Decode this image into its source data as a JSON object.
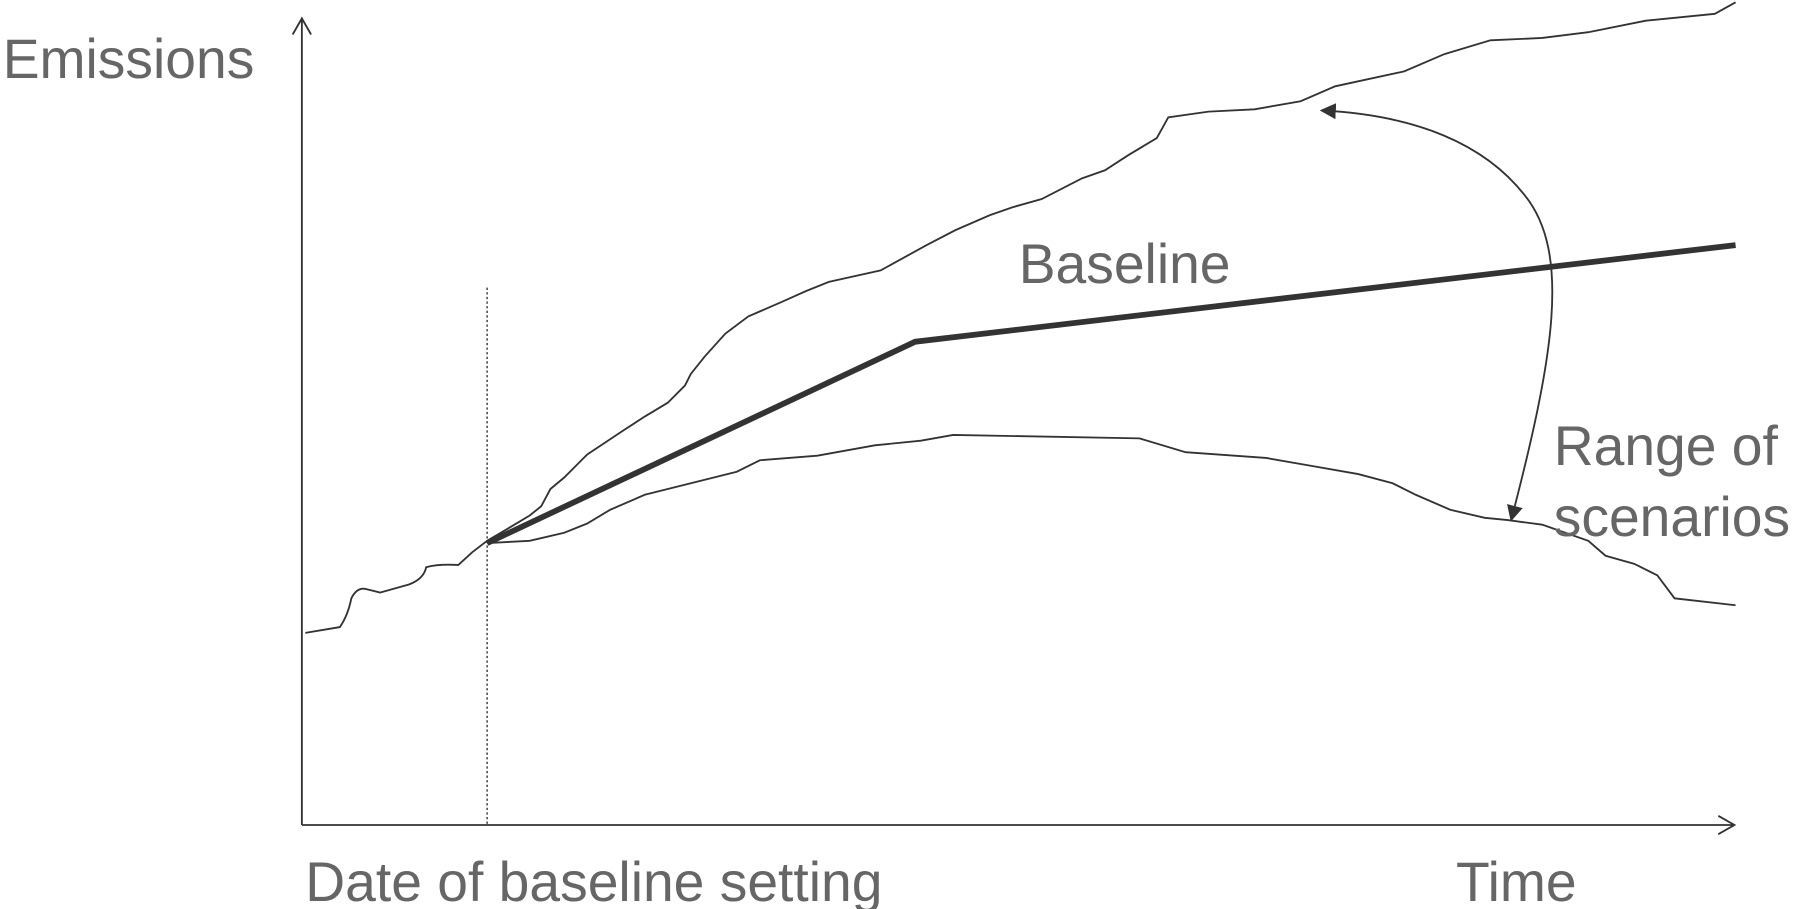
{
  "labels": {
    "y_axis": "Emissions",
    "x_axis": "Time",
    "date": "Date of baseline setting",
    "baseline": "Baseline",
    "range": [
      "Range of",
      "scenarios"
    ]
  }
}
